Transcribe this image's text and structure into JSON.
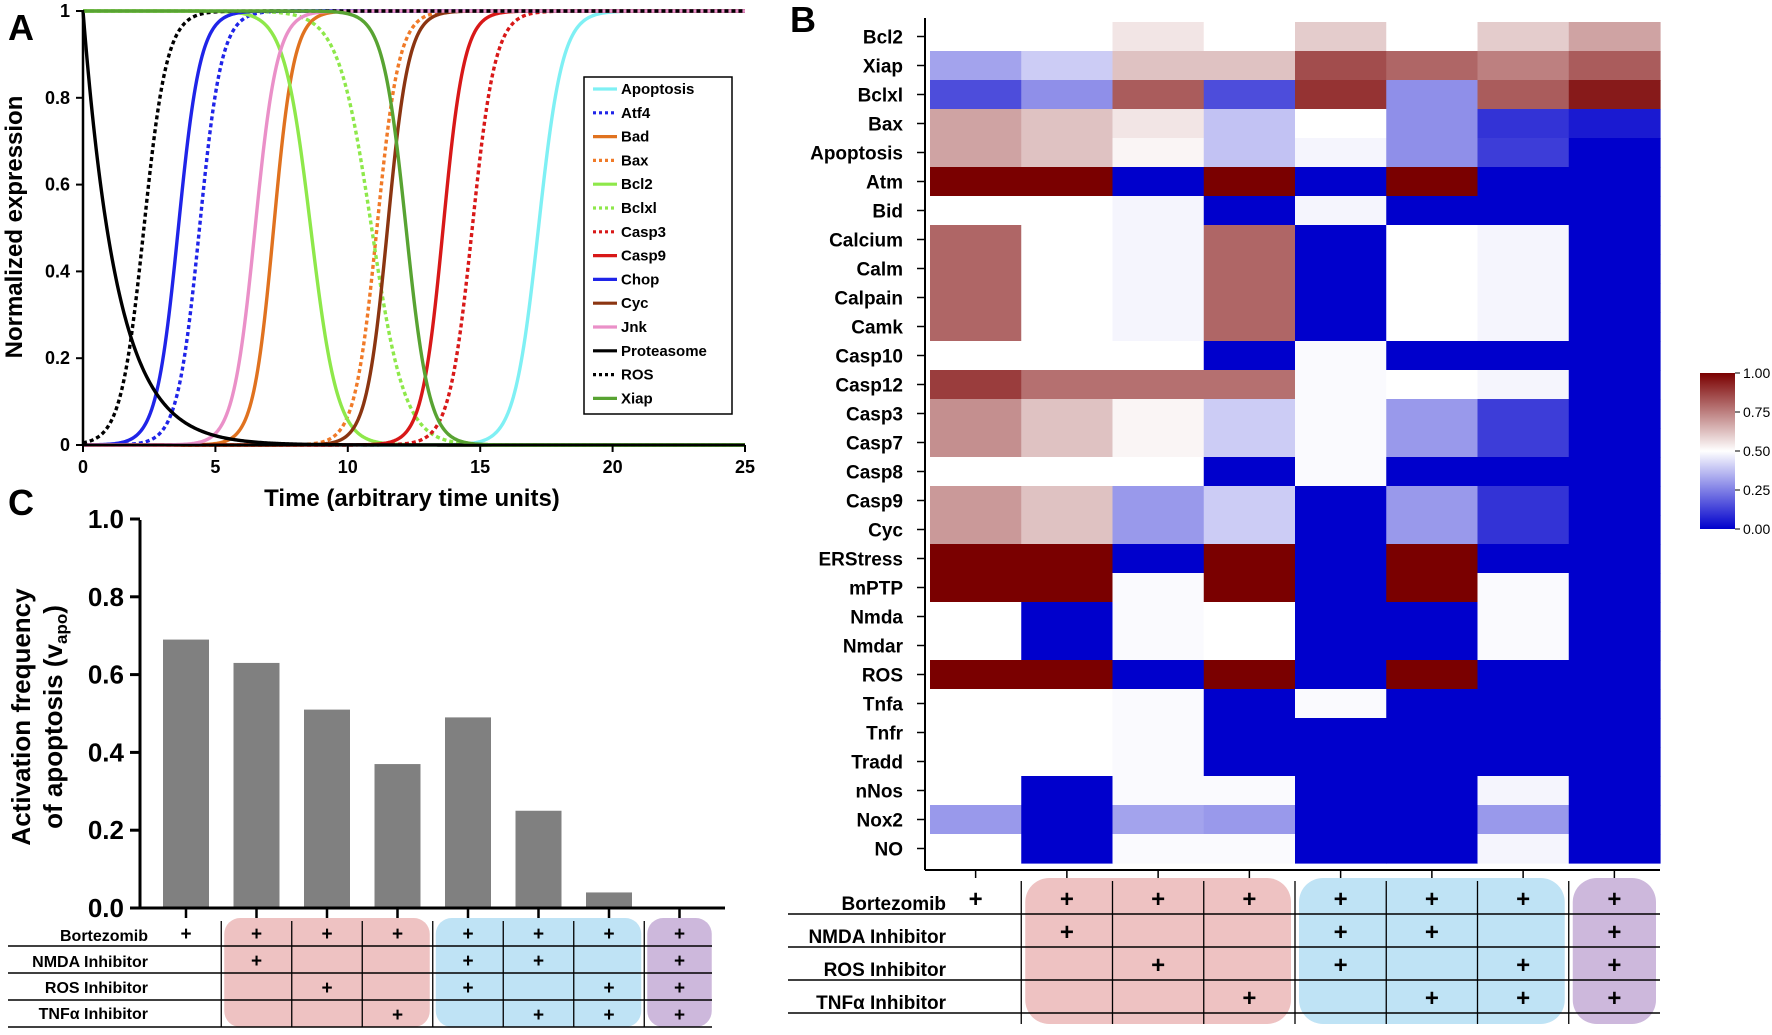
{
  "figure": {
    "panel_labels": [
      "A",
      "B",
      "C"
    ],
    "row_labels": [
      "Bortezomib",
      "NMDA Inhibitor",
      "ROS Inhibitor",
      "TNFα Inhibitor"
    ],
    "plus_glyph": "+",
    "group_colors": {
      "red": "#eec2c2",
      "blue": "#bfe3f5",
      "purple": "#cdb8dc"
    },
    "conditions": [
      {
        "bortezomib": true,
        "nmda": false,
        "ros": false,
        "tnfa": false,
        "group": "none"
      },
      {
        "bortezomib": true,
        "nmda": true,
        "ros": false,
        "tnfa": false,
        "group": "red"
      },
      {
        "bortezomib": true,
        "nmda": false,
        "ros": true,
        "tnfa": false,
        "group": "red"
      },
      {
        "bortezomib": true,
        "nmda": false,
        "ros": false,
        "tnfa": true,
        "group": "red"
      },
      {
        "bortezomib": true,
        "nmda": true,
        "ros": true,
        "tnfa": false,
        "group": "blue"
      },
      {
        "bortezomib": true,
        "nmda": true,
        "ros": false,
        "tnfa": true,
        "group": "blue"
      },
      {
        "bortezomib": true,
        "nmda": false,
        "ros": true,
        "tnfa": true,
        "group": "blue"
      },
      {
        "bortezomib": true,
        "nmda": true,
        "ros": true,
        "tnfa": true,
        "group": "purple"
      }
    ]
  },
  "chart_data": [
    {
      "panel": "A",
      "type": "line",
      "xlabel": "Time (arbitrary time units)",
      "ylabel": "Normalized expression",
      "xlim": [
        0,
        25
      ],
      "ylim": [
        0,
        1
      ],
      "xticks": [
        "0",
        "5",
        "10",
        "15",
        "20",
        "25"
      ],
      "yticks": [
        "0",
        "0.2",
        "0.4",
        "0.6",
        "0.8",
        "1"
      ],
      "legend_position": "right",
      "series": [
        {
          "name": "Apoptosis",
          "color": "#7ff0f4",
          "dash": "solid",
          "kind": "rise",
          "mid": 17.2,
          "k": 2.2
        },
        {
          "name": "Atf4",
          "color": "#1f24e8",
          "dash": "dotted",
          "kind": "rise",
          "mid": 4.4,
          "k": 2.4
        },
        {
          "name": "Bad",
          "color": "#e0721f",
          "dash": "solid",
          "kind": "rise",
          "mid": 7.2,
          "k": 2.6
        },
        {
          "name": "Bax",
          "color": "#f07a28",
          "dash": "dotted",
          "kind": "rise",
          "mid": 11.1,
          "k": 2.4
        },
        {
          "name": "Bcl2",
          "color": "#8ee84a",
          "dash": "solid",
          "kind": "fall",
          "mid": 8.6,
          "k": 2.0
        },
        {
          "name": "Bclxl",
          "color": "#8ee84a",
          "dash": "dotted",
          "kind": "fall",
          "mid": 10.9,
          "k": 1.6
        },
        {
          "name": "Casp3",
          "color": "#d81818",
          "dash": "dotted",
          "kind": "rise",
          "mid": 14.7,
          "k": 2.3
        },
        {
          "name": "Casp9",
          "color": "#d81818",
          "dash": "solid",
          "kind": "rise",
          "mid": 13.6,
          "k": 2.5
        },
        {
          "name": "Chop",
          "color": "#1f24e8",
          "dash": "solid",
          "kind": "rise",
          "mid": 3.6,
          "k": 2.4
        },
        {
          "name": "Cyc",
          "color": "#8b3511",
          "dash": "solid",
          "kind": "rise",
          "mid": 11.5,
          "k": 2.5
        },
        {
          "name": "Jnk",
          "color": "#ea90c8",
          "dash": "solid",
          "kind": "rise",
          "mid": 6.5,
          "k": 2.4
        },
        {
          "name": "Proteasome",
          "color": "#000000",
          "dash": "solid",
          "kind": "decay",
          "tau": 1.3
        },
        {
          "name": "ROS",
          "color": "#000000",
          "dash": "dotted",
          "kind": "rise",
          "mid": 2.3,
          "k": 2.3
        },
        {
          "name": "Xiap",
          "color": "#58a332",
          "dash": "solid",
          "kind": "fall",
          "mid": 12.2,
          "k": 2.3
        }
      ]
    },
    {
      "panel": "B",
      "type": "heatmap",
      "rows": [
        "Bcl2",
        "Xiap",
        "Bclxl",
        "Bax",
        "Apoptosis",
        "Atm",
        "Bid",
        "Calcium",
        "Calm",
        "Calpain",
        "Camk",
        "Casp10",
        "Casp12",
        "Casp3",
        "Casp7",
        "Casp8",
        "Casp9",
        "Cyc",
        "ERStress",
        "mPTP",
        "Nmda",
        "Nmdar",
        "ROS",
        "Tnfa",
        "Tnfr",
        "Tradd",
        "nNos",
        "Nox2",
        "NO"
      ],
      "columns": 8,
      "colorbar": {
        "ticks": [
          "1.00",
          "0.75",
          "0.50",
          "0.25",
          "0.00"
        ],
        "min": 0,
        "max": 1,
        "low_color": "#0000cc",
        "mid_color": "#ffffff",
        "high_color": "#7a0000"
      },
      "values": [
        [
          0.5,
          0.5,
          0.55,
          0.5,
          0.6,
          0.5,
          0.6,
          0.68
        ],
        [
          0.32,
          0.4,
          0.62,
          0.62,
          0.85,
          0.8,
          0.75,
          0.82
        ],
        [
          0.15,
          0.28,
          0.82,
          0.15,
          0.9,
          0.28,
          0.82,
          0.95
        ],
        [
          0.68,
          0.62,
          0.55,
          0.38,
          0.5,
          0.28,
          0.1,
          0.05
        ],
        [
          0.68,
          0.62,
          0.52,
          0.38,
          0.48,
          0.28,
          0.12,
          0.0
        ],
        [
          1.0,
          1.0,
          0.0,
          1.0,
          0.0,
          1.0,
          0.0,
          0.0
        ],
        [
          0.5,
          0.5,
          0.48,
          0.0,
          0.48,
          0.0,
          0.0,
          0.0
        ],
        [
          0.8,
          0.5,
          0.48,
          0.8,
          0.0,
          0.5,
          0.48,
          0.0
        ],
        [
          0.8,
          0.5,
          0.48,
          0.8,
          0.0,
          0.5,
          0.48,
          0.0
        ],
        [
          0.8,
          0.5,
          0.48,
          0.8,
          0.0,
          0.5,
          0.48,
          0.0
        ],
        [
          0.8,
          0.5,
          0.48,
          0.8,
          0.0,
          0.5,
          0.48,
          0.0
        ],
        [
          0.5,
          0.5,
          0.5,
          0.0,
          0.49,
          0.0,
          0.0,
          0.0
        ],
        [
          0.88,
          0.78,
          0.78,
          0.78,
          0.49,
          0.5,
          0.48,
          0.0
        ],
        [
          0.72,
          0.62,
          0.52,
          0.4,
          0.49,
          0.3,
          0.12,
          0.0
        ],
        [
          0.72,
          0.62,
          0.52,
          0.4,
          0.49,
          0.3,
          0.12,
          0.0
        ],
        [
          0.5,
          0.5,
          0.5,
          0.0,
          0.49,
          0.0,
          0.0,
          0.0
        ],
        [
          0.7,
          0.62,
          0.3,
          0.4,
          0.0,
          0.3,
          0.1,
          0.0
        ],
        [
          0.7,
          0.62,
          0.3,
          0.4,
          0.0,
          0.3,
          0.1,
          0.0
        ],
        [
          1.0,
          1.0,
          0.0,
          1.0,
          0.0,
          1.0,
          0.0,
          0.0
        ],
        [
          1.0,
          1.0,
          0.49,
          1.0,
          0.0,
          1.0,
          0.49,
          0.0
        ],
        [
          0.5,
          0.0,
          0.49,
          0.5,
          0.0,
          0.0,
          0.49,
          0.0
        ],
        [
          0.5,
          0.0,
          0.49,
          0.5,
          0.0,
          0.0,
          0.49,
          0.0
        ],
        [
          1.0,
          1.0,
          0.0,
          1.0,
          0.0,
          1.0,
          0.0,
          0.0
        ],
        [
          0.5,
          0.5,
          0.49,
          0.0,
          0.49,
          0.0,
          0.0,
          0.0
        ],
        [
          0.5,
          0.5,
          0.49,
          0.0,
          0.0,
          0.0,
          0.0,
          0.0
        ],
        [
          0.5,
          0.5,
          0.49,
          0.0,
          0.0,
          0.0,
          0.0,
          0.0
        ],
        [
          0.5,
          0.0,
          0.49,
          0.49,
          0.0,
          0.0,
          0.48,
          0.0
        ],
        [
          0.3,
          0.0,
          0.32,
          0.3,
          0.0,
          0.0,
          0.3,
          0.0
        ],
        [
          0.5,
          0.0,
          0.49,
          0.49,
          0.0,
          0.0,
          0.48,
          0.0
        ]
      ]
    },
    {
      "panel": "C",
      "type": "bar",
      "ylabel_line1": "Activation frequency",
      "ylabel_line2": "of apoptosis (v",
      "ylabel_sub": "apo",
      "ylabel_close": ")",
      "ylim": [
        0,
        1
      ],
      "yticks": [
        "0.0",
        "0.2",
        "0.4",
        "0.6",
        "0.8",
        "1.0"
      ],
      "bar_color": "#808080",
      "values": [
        0.69,
        0.63,
        0.51,
        0.37,
        0.49,
        0.25,
        0.04,
        0.0
      ]
    }
  ]
}
